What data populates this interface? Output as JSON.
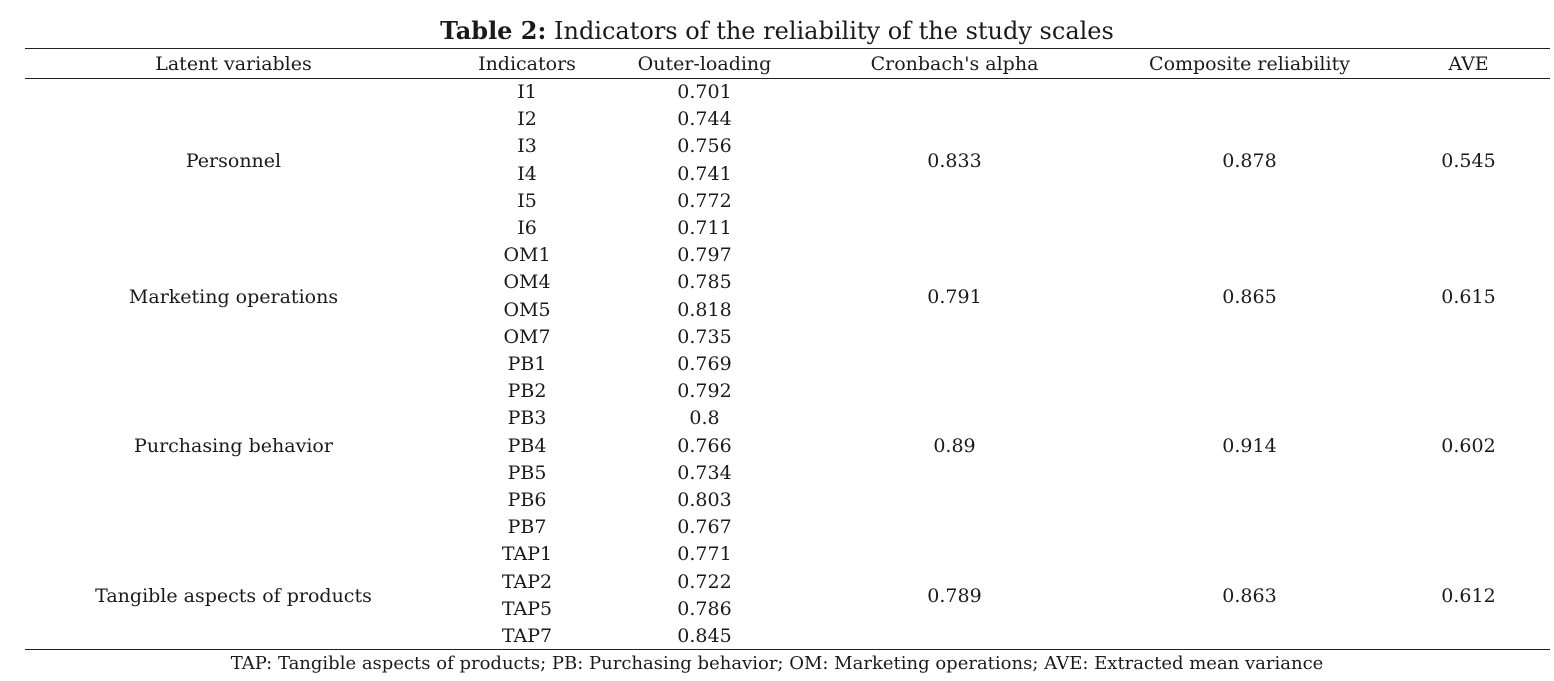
{
  "caption": {
    "label": "Table 2:",
    "text": " Indicators of the reliability of the study scales"
  },
  "headers": [
    "Latent variables",
    "Indicators",
    "Outer-loading",
    "Cronbach's alpha",
    "Composite reliability",
    "AVE"
  ],
  "groups": [
    {
      "variable": "Personnel",
      "alpha": "0.833",
      "cr": "0.878",
      "ave": "0.545",
      "items": [
        [
          "I1",
          "0.701"
        ],
        [
          "I2",
          "0.744"
        ],
        [
          "I3",
          "0.756"
        ],
        [
          "I4",
          "0.741"
        ],
        [
          "I5",
          "0.772"
        ],
        [
          "I6",
          "0.711"
        ]
      ]
    },
    {
      "variable": "Marketing operations",
      "alpha": "0.791",
      "cr": "0.865",
      "ave": "0.615",
      "items": [
        [
          "OM1",
          "0.797"
        ],
        [
          "OM4",
          "0.785"
        ],
        [
          "OM5",
          "0.818"
        ],
        [
          "OM7",
          "0.735"
        ]
      ]
    },
    {
      "variable": "Purchasing behavior",
      "alpha": "0.89",
      "cr": "0.914",
      "ave": "0.602",
      "items": [
        [
          "PB1",
          "0.769"
        ],
        [
          "PB2",
          "0.792"
        ],
        [
          "PB3",
          "0.8"
        ],
        [
          "PB4",
          "0.766"
        ],
        [
          "PB5",
          "0.734"
        ],
        [
          "PB6",
          "0.803"
        ],
        [
          "PB7",
          "0.767"
        ]
      ]
    },
    {
      "variable": "Tangible aspects of products",
      "alpha": "0.789",
      "cr": "0.863",
      "ave": "0.612",
      "items": [
        [
          "TAP1",
          "0.771"
        ],
        [
          "TAP2",
          "0.722"
        ],
        [
          "TAP5",
          "0.786"
        ],
        [
          "TAP7",
          "0.845"
        ]
      ]
    }
  ],
  "footnote": "TAP: Tangible aspects of products; PB: Purchasing behavior; OM: Marketing operations; AVE: Extracted mean variance"
}
